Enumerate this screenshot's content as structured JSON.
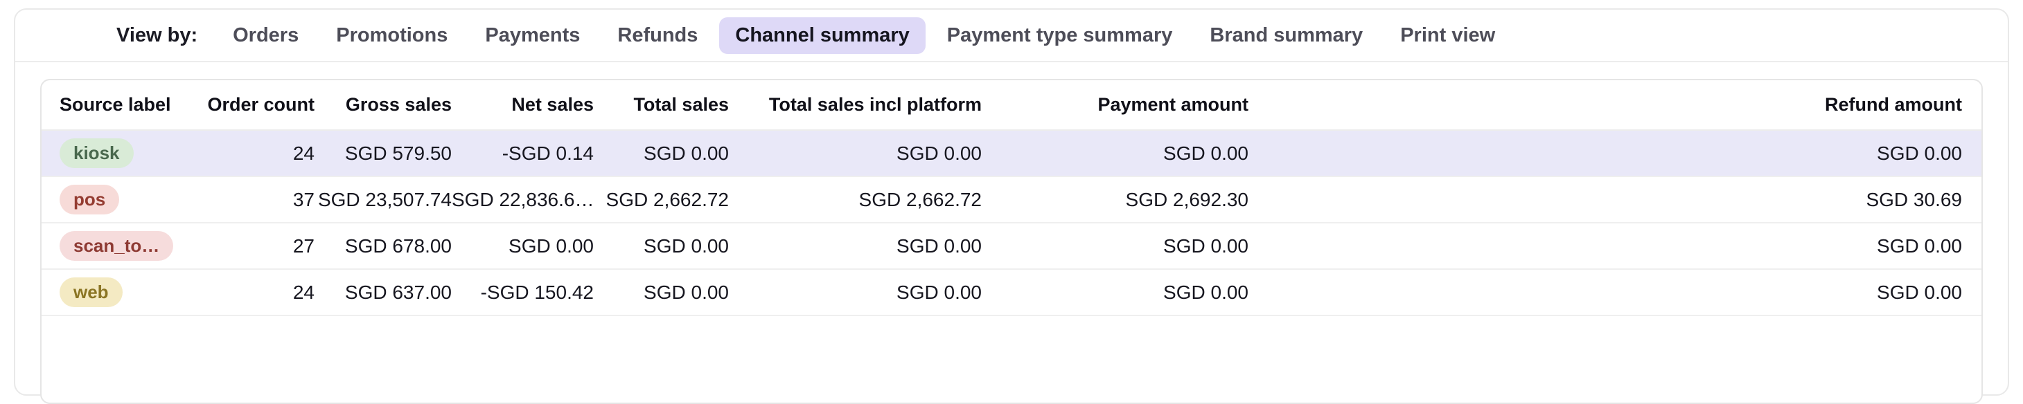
{
  "view_by": {
    "label": "View by:",
    "tabs": [
      {
        "label": "Orders",
        "selected": false
      },
      {
        "label": "Promotions",
        "selected": false
      },
      {
        "label": "Payments",
        "selected": false
      },
      {
        "label": "Refunds",
        "selected": false
      },
      {
        "label": "Channel summary",
        "selected": true
      },
      {
        "label": "Payment type summary",
        "selected": false
      },
      {
        "label": "Brand summary",
        "selected": false
      },
      {
        "label": "Print view",
        "selected": false
      }
    ],
    "selected_tab": "Channel summary"
  },
  "table": {
    "columns": [
      "Source label",
      "Order count",
      "Gross sales",
      "Net sales",
      "Total sales",
      "Total sales incl platform",
      "Payment amount",
      "Refund amount"
    ],
    "currency": "SGD",
    "rows": [
      {
        "source_label": "kiosk",
        "badge_color": "green",
        "highlighted": true,
        "order_count": "24",
        "gross_sales": "SGD 579.50",
        "net_sales": "-SGD 0.14",
        "total_sales": "SGD 0.00",
        "total_sales_incl_platform": "SGD 0.00",
        "payment_amount": "SGD 0.00",
        "refund_amount": "SGD 0.00"
      },
      {
        "source_label": "pos",
        "badge_color": "red",
        "highlighted": false,
        "order_count": "37",
        "gross_sales": "SGD 23,507.74",
        "net_sales": "SGD 22,836.6…",
        "total_sales": "SGD 2,662.72",
        "total_sales_incl_platform": "SGD 2,662.72",
        "payment_amount": "SGD 2,692.30",
        "refund_amount": "SGD 30.69"
      },
      {
        "source_label": "scan_to…",
        "badge_color": "pink",
        "highlighted": false,
        "order_count": "27",
        "gross_sales": "SGD 678.00",
        "net_sales": "SGD 0.00",
        "total_sales": "SGD 0.00",
        "total_sales_incl_platform": "SGD 0.00",
        "payment_amount": "SGD 0.00",
        "refund_amount": "SGD 0.00"
      },
      {
        "source_label": "web",
        "badge_color": "yellow",
        "highlighted": false,
        "order_count": "24",
        "gross_sales": "SGD 637.00",
        "net_sales": "-SGD 150.42",
        "total_sales": "SGD 0.00",
        "total_sales_incl_platform": "SGD 0.00",
        "payment_amount": "SGD 0.00",
        "refund_amount": "SGD 0.00"
      }
    ]
  },
  "colors": {
    "selected_tab_bg": "#ded9f7",
    "highlighted_row_bg": "#e9e8f8",
    "badge_green_bg": "#d9ebd7",
    "badge_green_text": "#49684d",
    "badge_red_bg": "#f7dbd8",
    "badge_red_text": "#943c31",
    "badge_pink_bg": "#f6dcdc",
    "badge_pink_text": "#8e3a33",
    "badge_yellow_bg": "#f4eac3",
    "badge_yellow_text": "#8b7524",
    "card_border": "#e9e9e9"
  }
}
